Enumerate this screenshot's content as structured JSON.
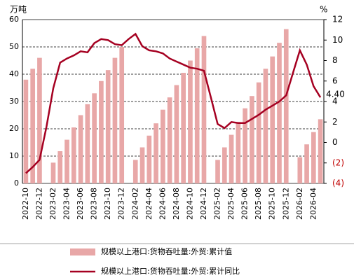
{
  "chart_data": {
    "type": "bar_line",
    "y_unit": "万吨",
    "y2_unit": "%",
    "categories": [
      "2022-10",
      null,
      "2022-12",
      null,
      "2023-02",
      null,
      "2023-04",
      null,
      "2023-06",
      null,
      "2023-08",
      null,
      "2023-10",
      null,
      "2023-12",
      null,
      "2024-02",
      null,
      "2024-04",
      null,
      "2024-06",
      null,
      "2024-08",
      null,
      "2024-10",
      null,
      "2024-12",
      null,
      "2025-02",
      null,
      "2025-04",
      null,
      "2025-06",
      null,
      "2025-08",
      null,
      "2025-10",
      null,
      "2025-12",
      null,
      "2026-02",
      null,
      "2026-04",
      null
    ],
    "series": [
      {
        "name": "规模以上港口:货物吞吐量:外贸:累计值",
        "color": "#e8a7a7",
        "type": "bar",
        "values": [
          38,
          42,
          46,
          null,
          7.6,
          11.8,
          16,
          20.5,
          25,
          29,
          33,
          37.5,
          41.5,
          46,
          50,
          null,
          8.6,
          13.2,
          17.5,
          22,
          27,
          31.5,
          36,
          40.5,
          45,
          49.5,
          54,
          null,
          8.6,
          13.2,
          17.8,
          22.5,
          27.5,
          32,
          37,
          42,
          46.5,
          51.5,
          56.5,
          null,
          9.6,
          14.3,
          18.8,
          23.5
        ]
      },
      {
        "name": "规模以上港口:货物吞吐量:外贸:累计同比",
        "color": "#a50021",
        "type": "line",
        "axis": "y2",
        "values": [
          -3.0,
          -2.4,
          -1.7,
          1.5,
          5.3,
          7.8,
          8.2,
          8.5,
          8.9,
          8.8,
          9.7,
          10.1,
          10.0,
          9.6,
          9.5,
          10.1,
          10.6,
          9.4,
          9.0,
          8.9,
          8.7,
          8.2,
          7.9,
          7.6,
          7.3,
          7.2,
          7.0,
          4.4,
          1.8,
          1.4,
          2.0,
          1.9,
          1.9,
          2.3,
          2.7,
          3.2,
          3.6,
          4.0,
          4.6,
          6.8,
          9.0,
          7.6,
          5.5,
          4.4
        ],
        "value_labels": [
          null,
          null,
          null,
          null,
          null,
          null,
          null,
          null,
          null,
          null,
          null,
          null,
          null,
          null,
          null,
          null,
          null,
          null,
          null,
          null,
          null,
          null,
          null,
          null,
          null,
          null,
          null,
          null,
          null,
          null,
          null,
          null,
          null,
          null,
          null,
          null,
          null,
          null,
          null,
          null,
          null,
          null,
          null,
          "4.40"
        ]
      }
    ],
    "ylim": [
      0,
      60
    ],
    "yticks": [
      0,
      10,
      20,
      30,
      40,
      50,
      60
    ],
    "y2lim": [
      -4,
      12
    ],
    "y2ticks": [
      {
        "value": -4,
        "label": "(4)"
      },
      {
        "value": -2,
        "label": "(2)"
      },
      0,
      2,
      4,
      6,
      8,
      10,
      12
    ],
    "negative_tick_color": "#c00000",
    "grid": true
  }
}
